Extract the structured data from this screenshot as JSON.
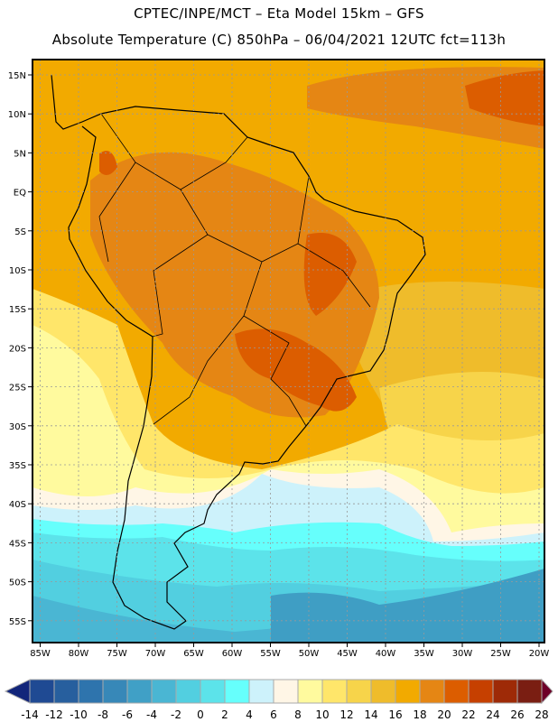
{
  "header": {
    "title_line1": "CPTEC/INPE/MCT –  Eta Model 15km – GFS",
    "title_line2": "Absolute Temperature (C) 850hPa – 06/04/2021 12UTC fct=113h"
  },
  "map": {
    "lat_labels": [
      "15N",
      "10N",
      "5N",
      "EQ",
      "5S",
      "10S",
      "15S",
      "20S",
      "25S",
      "30S",
      "35S",
      "40S",
      "45S",
      "50S",
      "55S"
    ],
    "lat_values": [
      15,
      10,
      5,
      0,
      -5,
      -10,
      -15,
      -20,
      -25,
      -30,
      -35,
      -40,
      -45,
      -50,
      -55
    ],
    "lon_labels": [
      "85W",
      "80W",
      "75W",
      "70W",
      "65W",
      "60W",
      "55W",
      "50W",
      "45W",
      "40W",
      "35W",
      "30W",
      "25W",
      "20W"
    ],
    "lon_values": [
      -85,
      -80,
      -75,
      -70,
      -65,
      -60,
      -55,
      -50,
      -45,
      -40,
      -35,
      -30,
      -25,
      -20
    ]
  },
  "colorbar": {
    "labels": [
      "-14",
      "-12",
      "-10",
      "-8",
      "-6",
      "-4",
      "-2",
      "0",
      "2",
      "4",
      "6",
      "8",
      "10",
      "12",
      "14",
      "16",
      "18",
      "20",
      "22",
      "24",
      "26",
      "28"
    ],
    "colors": [
      "#1f4a93",
      "#275f9e",
      "#2e74ad",
      "#3788b8",
      "#40a0c6",
      "#4ab6d3",
      "#52cfe0",
      "#5ce3ea",
      "#66fffc",
      "#cdf2fb",
      "#fff6e6",
      "#fffa9e",
      "#ffe66a",
      "#f7d44a",
      "#efbc2b",
      "#f2aa00",
      "#e58614",
      "#dc5d00",
      "#c64000",
      "#9e2a07",
      "#7a1e12"
    ],
    "under_color": "#12257a",
    "over_color": "#6e0028"
  }
}
